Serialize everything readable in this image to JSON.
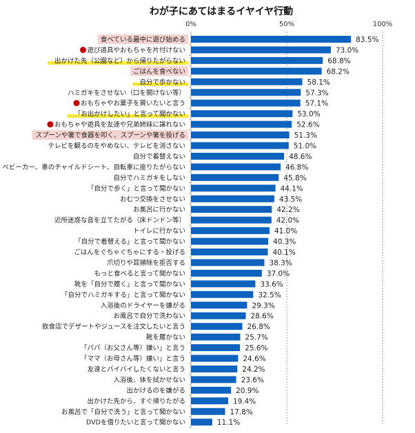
{
  "chart_data": {
    "type": "bar",
    "orientation": "horizontal",
    "title": "わが子にあてはまるイヤイヤ行動",
    "xlim": [
      0,
      100
    ],
    "xticks": [
      "0%",
      "50%",
      "100%"
    ],
    "grid": "vertical dashed at 50% and 100%",
    "bar_color": "#0E63BE",
    "highlight_colors": {
      "pink": "#F3D3D3",
      "yellow": "#F5E63A",
      "red_dot": "#C00000"
    },
    "categories": [
      "食べている最中に遊び始める",
      "遊び道具やおもちゃを片付けない",
      "出かけた先（公園など）から帰りたがらない",
      "ごはんを食べない",
      "自分で歩かない",
      "ハミガキをさせない（口を開けない等）",
      "おもちゃやお菓子を買いたいと言う",
      "「お出かけしたい」と言って聞かない",
      "おもちゃや遊具を友達や兄弟姉妹に譲れない",
      "スプーンや箸で食器を叩く、スプーンや箸を投げる",
      "テレビを観るのをやめない、テレビを消さない",
      "自分で着替えない",
      "ベビーカー、車のチャイルドシート、自転車に座りたがらない",
      "自分でハミガキをしない",
      "「自分で歩く」と言って聞かない",
      "おむつ交換をさせない",
      "お風呂に行かない",
      "近所迷惑な音を立てたがる（床ドンドン等）",
      "トイレに行かない",
      "「自分で着替える」と言って聞かない",
      "ごはんをぐちゃぐちゃにする・投げる",
      "爪切りや耳掃除を拒否する",
      "もっと食べると言って聞かない",
      "靴を「自分で履く」と言って聞かない",
      "「自分でハミガキする」と言って聞かない",
      "入浴後のドライヤーを嫌がる",
      "お風呂で自分で洗わない",
      "飲食店でデザートやジュースを注文したいと言う",
      "靴を履かない",
      "「パパ（お父さん等）嫌い」と言う",
      "「ママ（お母さん等）嫌い」と言う",
      "友達とバイバイしたくないと言う",
      "入浴後、体を拭かせない",
      "出かけるのを嫌がる",
      "出かけた先から、すぐ帰りたがる",
      "お風呂で「自分で洗う」と言って聞かない",
      "DVDを借りたいと言って聞かない"
    ],
    "values": [
      83.5,
      73.0,
      68.8,
      68.2,
      58.1,
      57.3,
      57.1,
      53.0,
      52.6,
      51.3,
      51.0,
      48.6,
      46.8,
      45.8,
      44.1,
      43.5,
      42.2,
      42.0,
      41.0,
      40.3,
      40.1,
      38.3,
      37.0,
      33.6,
      32.5,
      29.3,
      28.6,
      26.8,
      25.7,
      25.6,
      24.6,
      24.2,
      23.6,
      20.9,
      19.4,
      17.8,
      11.1
    ],
    "value_labels": [
      "83.5%",
      "73.0%",
      "68.8%",
      "68.2%",
      "58.1%",
      "57.3%",
      "57.1%",
      "53.0%",
      "52.6%",
      "51.3%",
      "51.0%",
      "48.6%",
      "46.8%",
      "45.8%",
      "44.1%",
      "43.5%",
      "42.2%",
      "42.0%",
      "41.0%",
      "40.3%",
      "40.1%",
      "38.3%",
      "37.0%",
      "33.6%",
      "32.5%",
      "29.3%",
      "28.6%",
      "26.8%",
      "25.7%",
      "25.6%",
      "24.6%",
      "24.2%",
      "23.6%",
      "20.9%",
      "19.4%",
      "17.8%",
      "11.1%"
    ],
    "label_marks": [
      "pink",
      "dot",
      "yellow",
      "pink",
      "yellow",
      "",
      "dot",
      "yellow",
      "dot",
      "pink",
      "",
      "",
      "",
      "",
      "",
      "",
      "",
      "",
      "",
      "",
      "",
      "",
      "",
      "",
      "",
      "",
      "",
      "",
      "",
      "",
      "",
      "",
      "",
      "",
      "",
      "",
      ""
    ]
  }
}
